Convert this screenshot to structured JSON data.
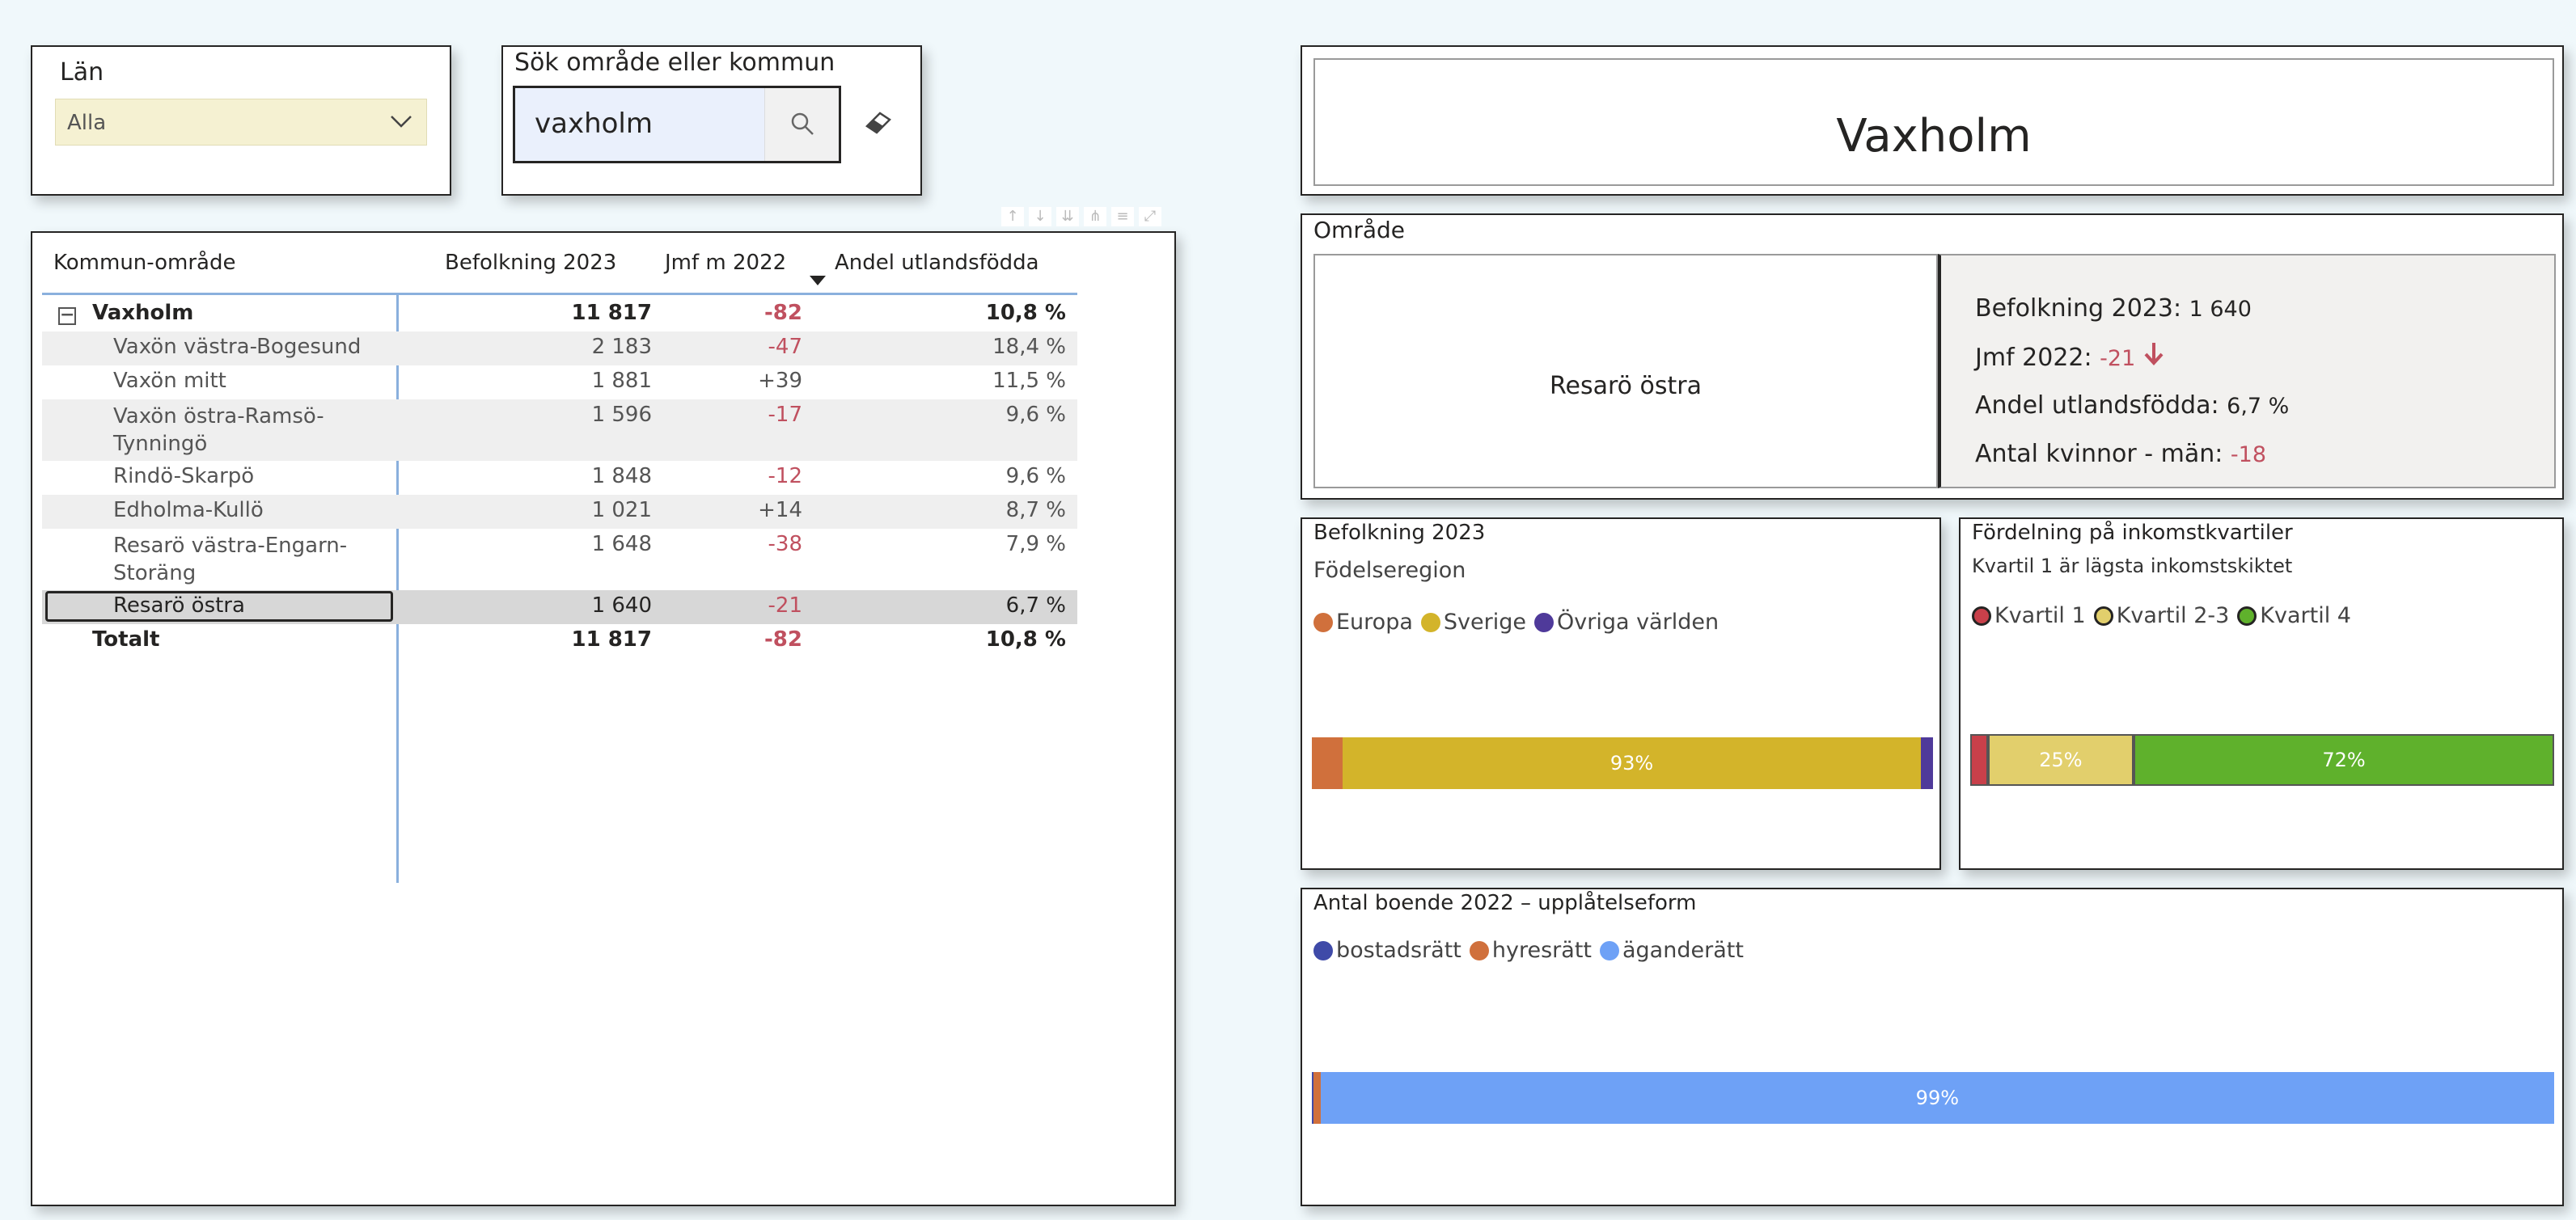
{
  "lan_slicer": {
    "title": "Län",
    "value": "Alla"
  },
  "search": {
    "title": "Sök område eller kommun",
    "value": "vaxholm"
  },
  "table": {
    "headers": {
      "area": "Kommun-område",
      "pop": "Befolkning 2023",
      "diff": "Jmf m 2022",
      "share": "Andel utlandsfödda"
    },
    "rows": [
      {
        "area": "Vaxholm",
        "pop": "11 817",
        "diff": "-82",
        "share": "10,8 %"
      },
      {
        "area": "Vaxön västra-Bogesund",
        "pop": "2 183",
        "diff": "-47",
        "share": "18,4 %"
      },
      {
        "area": "Vaxön mitt",
        "pop": "1 881",
        "diff": "+39",
        "share": "11,5 %"
      },
      {
        "area_line1": "Vaxön östra-Ramsö-",
        "area_line2": "Tynningö",
        "pop": "1 596",
        "diff": "-17",
        "share": "9,6 %"
      },
      {
        "area": "Rindö-Skarpö",
        "pop": "1 848",
        "diff": "-12",
        "share": "9,6 %"
      },
      {
        "area": "Edholma-Kullö",
        "pop": "1 021",
        "diff": "+14",
        "share": "8,7 %"
      },
      {
        "area_line1": "Resarö västra-Engarn-",
        "area_line2": "Storäng",
        "pop": "1 648",
        "diff": "-38",
        "share": "7,9 %"
      },
      {
        "area": "Resarö östra",
        "pop": "1 640",
        "diff": "-21",
        "share": "6,7 %"
      }
    ],
    "total": {
      "area": "Totalt",
      "pop": "11 817",
      "diff": "-82",
      "share": "10,8 %"
    }
  },
  "title_card": {
    "title": "Vaxholm"
  },
  "area_card": {
    "title": "Område",
    "name": "Resarö östra",
    "pop_label": "Befolkning 2023:",
    "pop_value": "1 640",
    "diff_label": "Jmf 2022:",
    "diff_value": "-21",
    "share_label": "Andel utlandsfödda:",
    "share_value": "6,7 %",
    "gender_label": "Antal kvinnor - män:",
    "gender_value": "-18"
  },
  "birth_chart": {
    "title": "Befolkning 2023",
    "subtitle": "Födelseregion",
    "legend": [
      "Europa",
      "Sverige",
      "Övriga världen"
    ],
    "colors": [
      "#d0703c",
      "#d3b42a",
      "#4f3a9a"
    ],
    "values": [
      5,
      93,
      2
    ],
    "labels": [
      "",
      "93%",
      ""
    ]
  },
  "income_chart": {
    "title": "Fördelning på inkomstkvartiler",
    "subtitle": "Kvartil 1 är lägsta inkomstskiktet",
    "legend": [
      "Kvartil 1",
      "Kvartil 2-3",
      "Kvartil 4"
    ],
    "colors": [
      "#c8404a",
      "#e2cf6c",
      "#5fb12c"
    ],
    "values": [
      3,
      25,
      72
    ],
    "labels": [
      "",
      "25%",
      "72%"
    ]
  },
  "housing_chart": {
    "title": "Antal boende 2022 – upplåtelseform",
    "legend": [
      "bostadsrätt",
      "hyresrätt",
      "äganderätt"
    ],
    "colors": [
      "#3f4aa8",
      "#d0703c",
      "#6ea1f6"
    ],
    "values": [
      0.1,
      0.6,
      99.3
    ],
    "labels": [
      "",
      "",
      "99%"
    ]
  }
}
